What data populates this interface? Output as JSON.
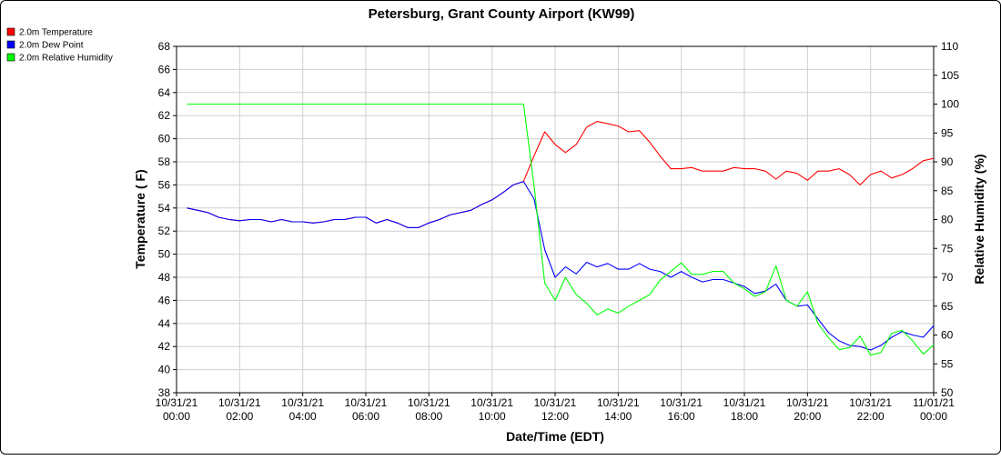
{
  "chart_data": {
    "type": "line",
    "title": "Petersburg, Grant County Airport (KW99)",
    "xlabel": "Date/Time (EDT)",
    "ylabel_left": "Temperature ( F)",
    "ylabel_right": "Relative Humidity (%)",
    "ylim_left": [
      38,
      68
    ],
    "ylim_right": [
      50,
      110
    ],
    "yticks_left": [
      38,
      40,
      42,
      44,
      46,
      48,
      50,
      52,
      54,
      56,
      58,
      60,
      62,
      64,
      66,
      68
    ],
    "yticks_right": [
      50,
      55,
      60,
      65,
      70,
      75,
      80,
      85,
      90,
      95,
      100,
      105,
      110
    ],
    "xlim_hours": [
      0,
      24
    ],
    "xticks": [
      {
        "t": 0,
        "date": "10/31/21",
        "time": "00:00"
      },
      {
        "t": 2,
        "date": "10/31/21",
        "time": "02:00"
      },
      {
        "t": 4,
        "date": "10/31/21",
        "time": "04:00"
      },
      {
        "t": 6,
        "date": "10/31/21",
        "time": "06:00"
      },
      {
        "t": 8,
        "date": "10/31/21",
        "time": "08:00"
      },
      {
        "t": 10,
        "date": "10/31/21",
        "time": "10:00"
      },
      {
        "t": 12,
        "date": "10/31/21",
        "time": "12:00"
      },
      {
        "t": 14,
        "date": "10/31/21",
        "time": "14:00"
      },
      {
        "t": 16,
        "date": "10/31/21",
        "time": "16:00"
      },
      {
        "t": 18,
        "date": "10/31/21",
        "time": "18:00"
      },
      {
        "t": 20,
        "date": "10/31/21",
        "time": "20:00"
      },
      {
        "t": 22,
        "date": "10/31/21",
        "time": "22:00"
      },
      {
        "t": 24,
        "date": "11/01/21",
        "time": "00:00"
      }
    ],
    "grid": true,
    "legend_position": "top-left",
    "series": [
      {
        "name": "2.0m Temperature",
        "color": "#ff0000",
        "axis": "left",
        "x": [
          0.33,
          0.67,
          1.0,
          1.33,
          1.67,
          2.0,
          2.33,
          2.67,
          3.0,
          3.33,
          3.67,
          4.0,
          4.33,
          4.67,
          5.0,
          5.33,
          5.67,
          6.0,
          6.33,
          6.67,
          7.0,
          7.33,
          7.67,
          8.0,
          8.33,
          8.67,
          9.0,
          9.33,
          9.67,
          10.0,
          10.33,
          10.67,
          11.0,
          11.33,
          11.67,
          12.0,
          12.33,
          12.67,
          13.0,
          13.33,
          13.67,
          14.0,
          14.33,
          14.67,
          15.0,
          15.33,
          15.67,
          16.0,
          16.33,
          16.67,
          17.0,
          17.33,
          17.67,
          18.0,
          18.33,
          18.67,
          19.0,
          19.33,
          19.67,
          20.0,
          20.33,
          20.67,
          21.0,
          21.33,
          21.67,
          22.0,
          22.33,
          22.67,
          23.0,
          23.33,
          23.67,
          24.0
        ],
        "y": [
          54.0,
          53.8,
          53.6,
          53.2,
          53.0,
          52.9,
          53.0,
          53.0,
          52.8,
          53.0,
          52.8,
          52.8,
          52.7,
          52.8,
          53.0,
          53.0,
          53.2,
          53.2,
          52.7,
          53.0,
          52.7,
          52.3,
          52.3,
          52.7,
          53.0,
          53.4,
          53.6,
          53.8,
          54.3,
          54.7,
          55.3,
          56.0,
          56.3,
          58.5,
          60.6,
          59.5,
          58.8,
          59.5,
          61.0,
          61.5,
          61.3,
          61.1,
          60.6,
          60.7,
          59.7,
          58.5,
          57.4,
          57.4,
          57.5,
          57.2,
          57.2,
          57.2,
          57.5,
          57.4,
          57.4,
          57.2,
          56.5,
          57.2,
          57.0,
          56.4,
          57.2,
          57.2,
          57.4,
          56.9,
          56.0,
          56.9,
          57.2,
          56.6,
          56.9,
          57.4,
          58.1,
          58.3
        ]
      },
      {
        "name": "2.0m Dew Point",
        "color": "#0000ff",
        "axis": "left",
        "x": [
          0.33,
          0.67,
          1.0,
          1.33,
          1.67,
          2.0,
          2.33,
          2.67,
          3.0,
          3.33,
          3.67,
          4.0,
          4.33,
          4.67,
          5.0,
          5.33,
          5.67,
          6.0,
          6.33,
          6.67,
          7.0,
          7.33,
          7.67,
          8.0,
          8.33,
          8.67,
          9.0,
          9.33,
          9.67,
          10.0,
          10.33,
          10.67,
          11.0,
          11.33,
          11.67,
          12.0,
          12.33,
          12.67,
          13.0,
          13.33,
          13.67,
          14.0,
          14.33,
          14.67,
          15.0,
          15.33,
          15.67,
          16.0,
          16.33,
          16.67,
          17.0,
          17.33,
          17.67,
          18.0,
          18.33,
          18.67,
          19.0,
          19.33,
          19.67,
          20.0,
          20.33,
          20.67,
          21.0,
          21.33,
          21.67,
          22.0,
          22.33,
          22.67,
          23.0,
          23.33,
          23.67,
          24.0
        ],
        "y": [
          54.0,
          53.8,
          53.6,
          53.2,
          53.0,
          52.9,
          53.0,
          53.0,
          52.8,
          53.0,
          52.8,
          52.8,
          52.7,
          52.8,
          53.0,
          53.0,
          53.2,
          53.2,
          52.7,
          53.0,
          52.7,
          52.3,
          52.3,
          52.7,
          53.0,
          53.4,
          53.6,
          53.8,
          54.3,
          54.7,
          55.3,
          56.0,
          56.3,
          54.8,
          50.4,
          48.0,
          48.9,
          48.3,
          49.3,
          48.9,
          49.2,
          48.7,
          48.7,
          49.2,
          48.7,
          48.5,
          48.0,
          48.5,
          48.0,
          47.6,
          47.8,
          47.8,
          47.5,
          47.2,
          46.6,
          46.8,
          47.4,
          46.0,
          45.5,
          45.6,
          44.4,
          43.2,
          42.5,
          42.1,
          42.0,
          41.7,
          42.1,
          42.8,
          43.3,
          43.0,
          42.8,
          43.8
        ]
      },
      {
        "name": "2.0m Relative Humidity",
        "color": "#00ff00",
        "axis": "right",
        "x": [
          0.33,
          1.0,
          2.0,
          3.0,
          4.0,
          5.0,
          6.0,
          7.0,
          8.0,
          9.0,
          10.0,
          10.67,
          11.0,
          11.33,
          11.67,
          12.0,
          12.33,
          12.67,
          13.0,
          13.33,
          13.67,
          14.0,
          14.33,
          14.67,
          15.0,
          15.33,
          15.67,
          16.0,
          16.33,
          16.67,
          17.0,
          17.33,
          17.67,
          18.0,
          18.33,
          18.67,
          19.0,
          19.33,
          19.67,
          20.0,
          20.33,
          20.67,
          21.0,
          21.33,
          21.67,
          22.0,
          22.33,
          22.67,
          23.0,
          23.33,
          23.67,
          24.0
        ],
        "y": [
          100,
          100,
          100,
          100,
          100,
          100,
          100,
          100,
          100,
          100,
          100,
          100,
          100,
          86,
          69,
          66,
          70,
          67,
          65.5,
          63.5,
          64.5,
          63.8,
          65,
          66,
          67,
          69.5,
          71,
          72.5,
          70.5,
          70.5,
          71,
          71,
          69,
          68,
          66.7,
          67.5,
          72,
          66,
          65,
          67.5,
          62,
          59.5,
          57.5,
          57.8,
          59.8,
          56.5,
          57,
          60.3,
          60.8,
          59,
          56.7,
          58.3
        ]
      }
    ]
  }
}
